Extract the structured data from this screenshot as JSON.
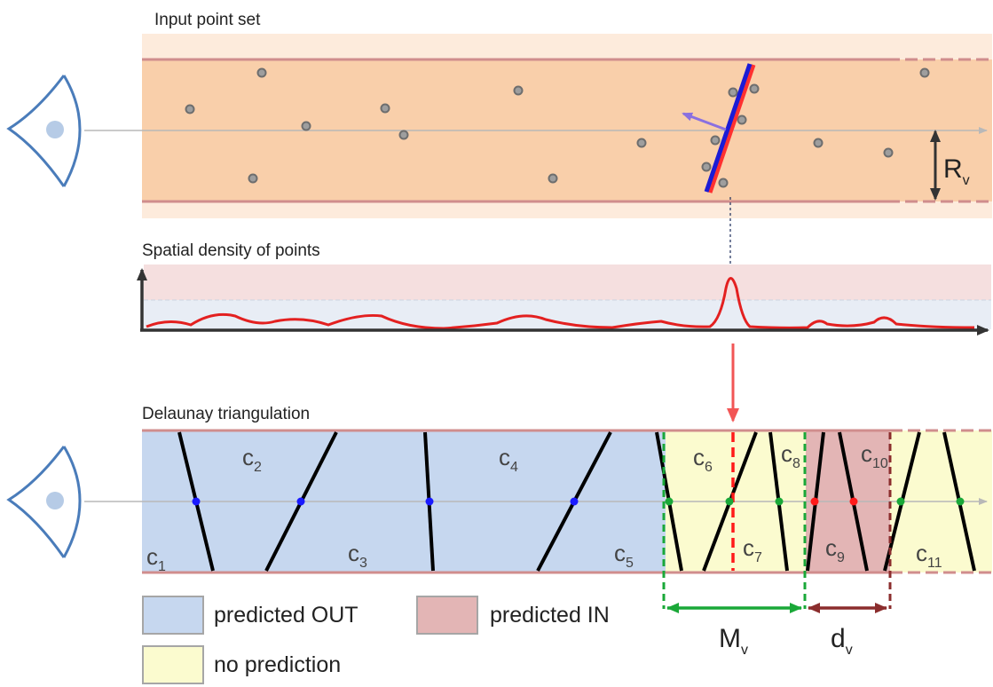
{
  "panels": {
    "input": {
      "title": "Input point set"
    },
    "density": {
      "title": "Spatial density of points"
    },
    "delaunay": {
      "title": "Delaunay triangulation"
    }
  },
  "labels": {
    "radius": {
      "main": "R",
      "sub": "v"
    },
    "margin": {
      "main": "M",
      "sub": "v"
    },
    "distance": {
      "main": "d",
      "sub": "v"
    }
  },
  "cells": [
    {
      "main": "c",
      "sub": "1"
    },
    {
      "main": "c",
      "sub": "2"
    },
    {
      "main": "c",
      "sub": "3"
    },
    {
      "main": "c",
      "sub": "4"
    },
    {
      "main": "c",
      "sub": "5"
    },
    {
      "main": "c",
      "sub": "6"
    },
    {
      "main": "c",
      "sub": "7"
    },
    {
      "main": "c",
      "sub": "8"
    },
    {
      "main": "c",
      "sub": "9"
    },
    {
      "main": "c",
      "sub": "10"
    },
    {
      "main": "c",
      "sub": "11"
    }
  ],
  "legend": [
    {
      "label": "predicted OUT",
      "color": "#c6d7ef"
    },
    {
      "label": "predicted IN",
      "color": "#e3b5b5"
    },
    {
      "label": "no prediction",
      "color": "#fbfbcf"
    }
  ],
  "colors": {
    "tube_fill": "#f9cfaa",
    "tube_border": "#d08d8d",
    "eye": "#4a7cba",
    "pupil": "#b6cbe6",
    "point_fill": "#9e9e9e",
    "point_stroke": "#6e6e6e",
    "plane_red": "#ff3030",
    "plane_blue": "#1b1bd6",
    "normal": "#8a70e0",
    "density_curve": "#e32020",
    "arrow_down": "#f25656",
    "margin_green": "#1aa838",
    "distance_brown": "#8b2d2d",
    "vertex_blue": "#1a1aff",
    "vertex_green": "#1aa838",
    "vertex_red": "#ff1a1a"
  },
  "icons": {
    "eye_top": "eye-icon",
    "eye_bottom": "eye-icon"
  }
}
